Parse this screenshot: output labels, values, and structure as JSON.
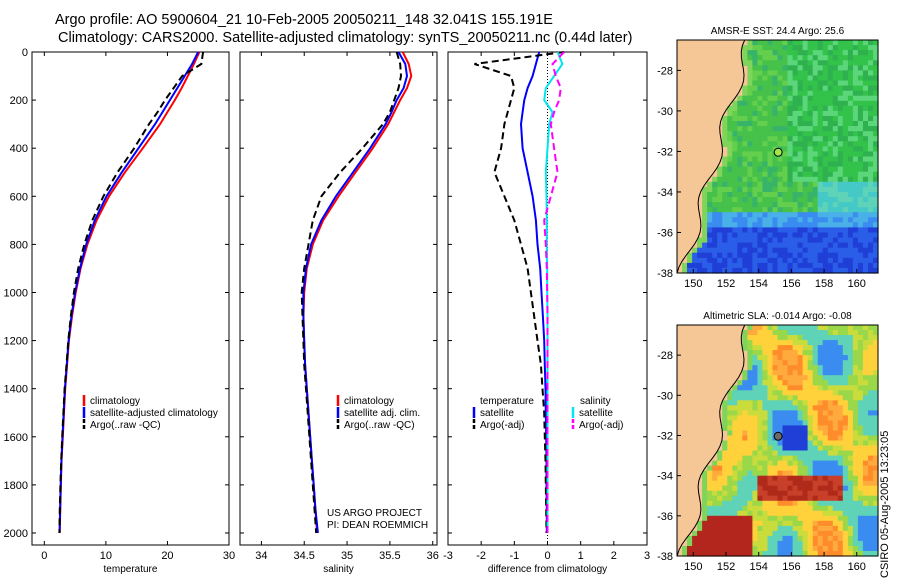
{
  "header": {
    "title_line1": "Argo profile: AO 5900604_21 10-Feb-2005 20050211_148 32.041S 155.191E",
    "title_line2": "Climatology: CARS2000. Satellite-adjusted climatology: synTS_20050211.nc (0.44d later)",
    "side_stamp": "CSIRO 05-Aug-2005 13:23:05"
  },
  "colors": {
    "climatology": "#ff0000",
    "satellite": "#0000ff",
    "argo": "#000000",
    "salinity_sat": "#00e5ee",
    "salinity_argo": "#ff00ff",
    "land": "#f5c696"
  },
  "chart_data": [
    {
      "type": "line",
      "xlabel": "temperature",
      "ylabel": "",
      "xlim": [
        -2,
        30
      ],
      "ylim": [
        2050,
        0
      ],
      "xticks": [
        0,
        10,
        20,
        30
      ],
      "yticks": [
        0,
        200,
        400,
        600,
        800,
        1000,
        1200,
        1400,
        1600,
        1800,
        2000
      ],
      "depth": [
        0,
        50,
        100,
        150,
        200,
        250,
        300,
        400,
        500,
        600,
        700,
        800,
        900,
        1000,
        1100,
        1200,
        1300,
        1400,
        1500,
        1600,
        1700,
        1800,
        1900,
        2000
      ],
      "series": [
        {
          "name": "climatology",
          "color": "#ff0000",
          "dash": "",
          "values": [
            25.2,
            24.3,
            23.3,
            22.3,
            21.2,
            20.0,
            18.8,
            16.0,
            13.1,
            10.5,
            8.5,
            7.0,
            5.9,
            5.1,
            4.5,
            4.0,
            3.7,
            3.4,
            3.2,
            3.0,
            2.8,
            2.7,
            2.6,
            2.5
          ]
        },
        {
          "name": "satellite-adjusted climatology",
          "color": "#0000ff",
          "dash": "",
          "values": [
            25.0,
            24.0,
            22.8,
            21.6,
            20.4,
            19.2,
            18.0,
            15.3,
            12.6,
            10.1,
            8.2,
            6.8,
            5.8,
            5.0,
            4.4,
            3.95,
            3.65,
            3.35,
            3.15,
            2.95,
            2.78,
            2.66,
            2.56,
            2.48
          ]
        },
        {
          "name": "Argo(..raw -QC)",
          "color": "#000000",
          "dash": "7,4",
          "values": [
            25.8,
            25.5,
            22.4,
            21.0,
            19.6,
            18.4,
            17.0,
            14.6,
            11.9,
            9.6,
            7.8,
            6.5,
            5.5,
            4.8,
            4.3,
            3.9,
            3.6,
            3.3,
            3.1,
            2.9,
            2.75,
            2.62,
            2.52,
            2.45
          ]
        }
      ],
      "legend": [
        "climatology",
        "satellite-adjusted climatology",
        "Argo(..raw -QC)"
      ]
    },
    {
      "type": "line",
      "xlabel": "salinity",
      "ylabel": "",
      "xlim": [
        33.75,
        36.05
      ],
      "ylim": [
        2050,
        0
      ],
      "xticks": [
        34,
        34.5,
        35,
        35.5,
        36
      ],
      "depth": [
        0,
        50,
        100,
        150,
        200,
        250,
        300,
        400,
        500,
        600,
        700,
        800,
        900,
        1000,
        1100,
        1200,
        1300,
        1400,
        1500,
        1600,
        1700,
        1800,
        1900,
        2000
      ],
      "series": [
        {
          "name": "climatology",
          "color": "#ff0000",
          "dash": "",
          "values": [
            35.65,
            35.72,
            35.75,
            35.7,
            35.62,
            35.55,
            35.48,
            35.3,
            35.1,
            34.9,
            34.72,
            34.6,
            34.53,
            34.5,
            34.49,
            34.5,
            34.51,
            34.53,
            34.55,
            34.57,
            34.59,
            34.61,
            34.63,
            34.65
          ]
        },
        {
          "name": "satellite adj. clim.",
          "color": "#0000ff",
          "dash": "",
          "values": [
            35.6,
            35.68,
            35.7,
            35.66,
            35.58,
            35.52,
            35.45,
            35.27,
            35.07,
            34.87,
            34.7,
            34.58,
            34.52,
            34.49,
            34.49,
            34.5,
            34.51,
            34.53,
            34.55,
            34.57,
            34.59,
            34.61,
            34.63,
            34.66
          ]
        },
        {
          "name": "Argo(..raw -QC)",
          "color": "#000000",
          "dash": "7,4",
          "values": [
            35.58,
            35.62,
            35.63,
            35.6,
            35.55,
            35.5,
            35.42,
            35.18,
            34.92,
            34.7,
            34.6,
            34.55,
            34.5,
            34.47,
            34.48,
            34.49,
            34.5,
            34.52,
            34.54,
            34.56,
            34.58,
            34.6,
            34.62,
            34.64
          ]
        }
      ],
      "legend": [
        "climatology",
        "satellite adj. clim.",
        "Argo(..raw -QC)"
      ],
      "annotation": [
        "US ARGO PROJECT",
        "PI: DEAN ROEMMICH"
      ]
    },
    {
      "type": "line",
      "xlabel": "difference from climatology",
      "ylabel": "",
      "xlim": [
        -3,
        3
      ],
      "ylim": [
        2050,
        0
      ],
      "xticks": [
        -3,
        -2,
        -1,
        0,
        1,
        2,
        3
      ],
      "depth": [
        0,
        50,
        100,
        150,
        200,
        250,
        300,
        400,
        500,
        600,
        700,
        800,
        900,
        1000,
        1100,
        1200,
        1300,
        1400,
        1500,
        1600,
        1700,
        1800,
        1900,
        2000
      ],
      "series": [
        {
          "name": "temperature satellite",
          "color": "#0000ff",
          "dash": "",
          "values": [
            -0.25,
            -0.35,
            -0.45,
            -0.6,
            -0.7,
            -0.75,
            -0.8,
            -0.75,
            -0.6,
            -0.45,
            -0.35,
            -0.3,
            -0.22,
            -0.18,
            -0.14,
            -0.1,
            -0.08,
            -0.06,
            -0.05,
            -0.04,
            -0.03,
            -0.03,
            -0.02,
            -0.02
          ]
        },
        {
          "name": "temperature Argo(-adj)",
          "color": "#000000",
          "dash": "7,4",
          "values": [
            0.5,
            -2.2,
            -1.1,
            -1.0,
            -1.1,
            -1.2,
            -1.3,
            -1.4,
            -1.6,
            -1.3,
            -1.0,
            -0.8,
            -0.6,
            -0.5,
            -0.4,
            -0.3,
            -0.2,
            -0.15,
            -0.1,
            -0.08,
            -0.06,
            -0.05,
            -0.04,
            -0.03
          ]
        },
        {
          "name": "salinity satellite",
          "color": "#00e5ee",
          "dash": "",
          "values": [
            0.3,
            0.45,
            0.2,
            -0.05,
            -0.1,
            0.15,
            0.05,
            0.0,
            -0.05,
            -0.03,
            -0.02,
            -0.02,
            -0.01,
            -0.01,
            0.0,
            0.0,
            0.0,
            0.0,
            0.0,
            0.0,
            0.0,
            0.0,
            0.0,
            0.0
          ]
        },
        {
          "name": "salinity Argo(-adj)",
          "color": "#ff00ff",
          "dash": "7,4",
          "values": [
            0.5,
            0.15,
            0.25,
            0.4,
            0.35,
            0.2,
            0.1,
            0.2,
            0.3,
            0.1,
            -0.1,
            -0.05,
            -0.02,
            -0.01,
            0.0,
            0.0,
            0.0,
            0.0,
            0.0,
            0.0,
            0.0,
            0.0,
            0.0,
            0.0
          ]
        }
      ],
      "legend_left": {
        "heading": "temperature",
        "items": [
          "satellite",
          "Argo(-adj)"
        ]
      },
      "legend_right": {
        "heading": "salinity",
        "items": [
          "satellite",
          "Argo(-adj)"
        ]
      }
    },
    {
      "type": "heatmap",
      "title": "AMSR-E SST: 24.4 Argo: 25.6",
      "xlim": [
        149,
        161.3
      ],
      "ylim": [
        -38,
        -26.5
      ],
      "xticks": [
        150,
        152,
        154,
        156,
        158,
        160
      ],
      "yticks": [
        -28,
        -30,
        -32,
        -34,
        -36,
        -38
      ],
      "marker": {
        "lon": 155.19,
        "lat": -32.04
      }
    },
    {
      "type": "heatmap",
      "title": "Altimetric SLA: -0.014 Argo: -0.08",
      "xlim": [
        149,
        161.3
      ],
      "ylim": [
        -38,
        -26.5
      ],
      "xticks": [
        150,
        152,
        154,
        156,
        158,
        160
      ],
      "yticks": [
        -28,
        -30,
        -32,
        -34,
        -36,
        -38
      ],
      "marker": {
        "lon": 155.19,
        "lat": -32.04
      }
    }
  ]
}
